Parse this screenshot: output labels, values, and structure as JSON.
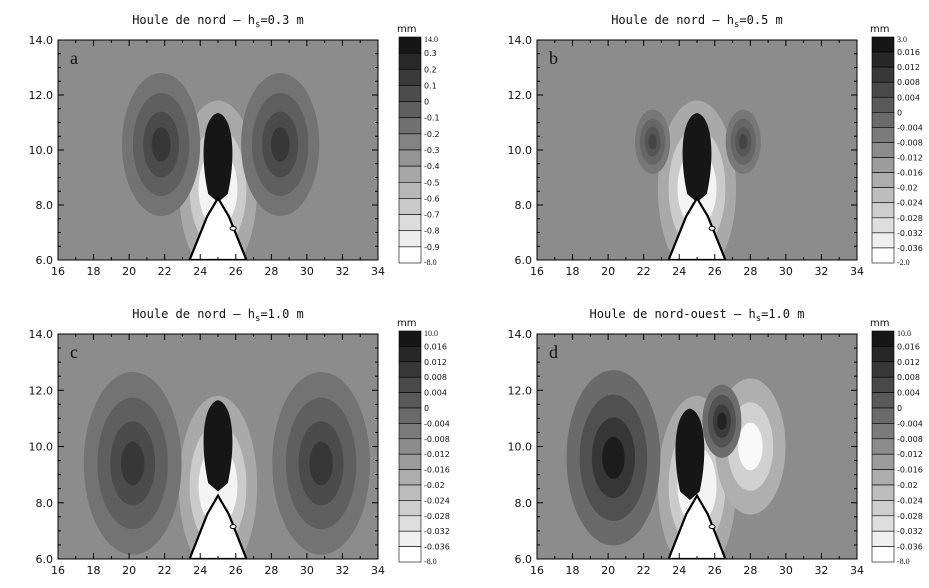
{
  "chart_data": [
    {
      "type": "heatmap",
      "panel_letter": "a",
      "title": "Houle de nord – h",
      "title_sub": "s",
      "title_tail": "=0.3 m",
      "unit": "mm",
      "xlim": [
        16,
        34
      ],
      "ylim": [
        6.0,
        14.0
      ],
      "x_ticks": [
        "16",
        "18",
        "20",
        "22",
        "24",
        "26",
        "28",
        "30",
        "32",
        "34"
      ],
      "y_ticks": [
        "6.0",
        "8.0",
        "10.0",
        "12.0",
        "14.0"
      ],
      "colorbar_top": "14.0",
      "colorbar_bottom": "-8.0",
      "colorbar_labels": [
        "0.3",
        "0.2",
        "0.1",
        "0",
        "-0.1",
        "-0.2",
        "-0.3",
        "-0.4",
        "-0.5",
        "-0.6",
        "-0.7",
        "-0.8",
        "-0.9"
      ],
      "features": {
        "blob": {
          "x": 25.0,
          "y": 10.0,
          "level": 1.0
        },
        "lobes": [
          {
            "x": 21.8,
            "y": 10.2,
            "level": 0.72,
            "span": 1.0
          },
          {
            "x": 28.5,
            "y": 10.2,
            "level": 0.72,
            "span": 1.0
          }
        ]
      }
    },
    {
      "type": "heatmap",
      "panel_letter": "b",
      "title": "Houle de nord – h",
      "title_sub": "s",
      "title_tail": "=0.5 m",
      "unit": "mm",
      "xlim": [
        16,
        34
      ],
      "ylim": [
        6.0,
        14.0
      ],
      "x_ticks": [
        "16",
        "18",
        "20",
        "22",
        "24",
        "26",
        "28",
        "30",
        "32",
        "34"
      ],
      "y_ticks": [
        "6.0",
        "8.0",
        "10.0",
        "12.0",
        "14.0"
      ],
      "colorbar_top": "3.0",
      "colorbar_bottom": "-2.0",
      "colorbar_labels": [
        "0.016",
        "0.012",
        "0.008",
        "0.004",
        "0",
        "-0.004",
        "-0.008",
        "-0.012",
        "-0.016",
        "-0.02",
        "-0.024",
        "-0.028",
        "-0.032",
        "-0.036"
      ],
      "features": {
        "blob": {
          "x": 25.0,
          "y": 10.0,
          "level": 1.0
        },
        "lobes": [
          {
            "x": 22.5,
            "y": 10.3,
            "level": 0.6,
            "span": 0.45
          },
          {
            "x": 27.6,
            "y": 10.3,
            "level": 0.6,
            "span": 0.45
          }
        ]
      }
    },
    {
      "type": "heatmap",
      "panel_letter": "c",
      "title": "Houle de nord – h",
      "title_sub": "s",
      "title_tail": "=1.0 m",
      "unit": "mm",
      "xlim": [
        16,
        34
      ],
      "ylim": [
        6.0,
        14.0
      ],
      "x_ticks": [
        "16",
        "18",
        "20",
        "22",
        "24",
        "26",
        "28",
        "30",
        "32",
        "34"
      ],
      "y_ticks": [
        "6.0",
        "8.0",
        "10.0",
        "12.0",
        "14.0"
      ],
      "colorbar_top": "10.0",
      "colorbar_bottom": "-8.0",
      "colorbar_labels": [
        "0.016",
        "0.012",
        "0.008",
        "0.004",
        "0",
        "-0.004",
        "-0.008",
        "-0.012",
        "-0.016",
        "-0.02",
        "-0.024",
        "-0.028",
        "-0.032",
        "-0.036"
      ],
      "features": {
        "blob": {
          "x": 25.0,
          "y": 10.3,
          "level": 1.0
        },
        "lobes": [
          {
            "x": 20.2,
            "y": 9.4,
            "level": 0.72,
            "span": 1.25
          },
          {
            "x": 30.8,
            "y": 9.4,
            "level": 0.72,
            "span": 1.25
          }
        ]
      }
    },
    {
      "type": "heatmap",
      "panel_letter": "d",
      "title": "Houle de nord-ouest – h",
      "title_sub": "s",
      "title_tail": "=1.0 m",
      "unit": "mm",
      "xlim": [
        16,
        34
      ],
      "ylim": [
        6.0,
        14.0
      ],
      "x_ticks": [
        "16",
        "18",
        "20",
        "22",
        "24",
        "26",
        "28",
        "30",
        "32",
        "34"
      ],
      "y_ticks": [
        "6.0",
        "8.0",
        "10.0",
        "12.0",
        "14.0"
      ],
      "colorbar_top": "10.0",
      "colorbar_bottom": "-8.0",
      "colorbar_labels": [
        "0.016",
        "0.012",
        "0.008",
        "0.004",
        "0",
        "-0.004",
        "-0.008",
        "-0.012",
        "-0.016",
        "-0.02",
        "-0.024",
        "-0.028",
        "-0.032",
        "-0.036"
      ],
      "features": {
        "blob": {
          "x": 24.6,
          "y": 10.0,
          "level": 1.0
        },
        "lobes": [
          {
            "x": 20.3,
            "y": 9.6,
            "level": 0.95,
            "span": 1.2
          },
          {
            "x": 26.4,
            "y": 10.9,
            "level": 0.9,
            "span": 0.5
          }
        ],
        "light": {
          "x": 28.0,
          "y": 10.0,
          "span": 1.1
        }
      }
    }
  ]
}
